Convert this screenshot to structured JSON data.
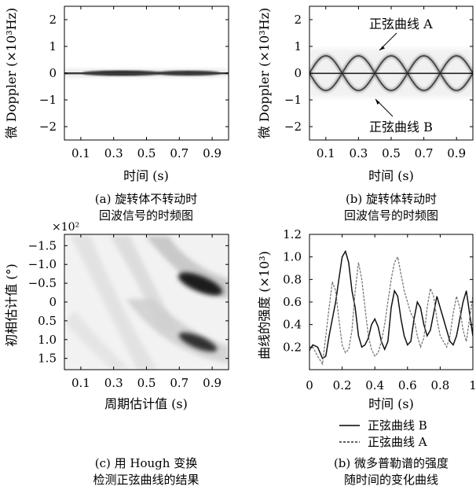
{
  "panels": {
    "a": {
      "ylabel": "微 Doppler (×10³Hz)",
      "xlabel": "时间 (s)",
      "xticks": [
        "0.1",
        "0.3",
        "0.5",
        "0.7",
        "0.9"
      ],
      "yticks": [
        "−2",
        "−1",
        "0",
        "1",
        "2"
      ],
      "caption_line1": "(a) 旋转体不转动时",
      "caption_line2": "回波信号的时频图"
    },
    "b": {
      "ylabel": "微 Doppler (×10³Hz)",
      "xlabel": "时间 (s)",
      "xticks": [
        "0.1",
        "0.3",
        "0.5",
        "0.7",
        "0.9"
      ],
      "yticks": [
        "−2",
        "−1",
        "0",
        "1",
        "2"
      ],
      "annotation_a": "正弦曲线 A",
      "annotation_b": "正弦曲线 B",
      "caption_line1": "(b) 旋转体转动时",
      "caption_line2": "回波信号的时频图"
    },
    "c": {
      "ylabel": "初相估计值 (°)",
      "xlabel": "周期估计值 (s)",
      "multiplier": "×10²",
      "xticks": [
        "0.1",
        "0.3",
        "0.5",
        "0.7",
        "0.9"
      ],
      "yticks": [
        "−1.5",
        "−1.0",
        "−0.5",
        "0",
        "0.5",
        "1.0",
        "1.5"
      ],
      "caption_line1": "(c) 用 Hough 变换",
      "caption_line2": "检测正弦曲线的结果"
    },
    "d": {
      "ylabel": "曲线的强度 (×10³)",
      "xlabel": "时间 (s)",
      "xticks": [
        "0",
        "0.2",
        "0.4",
        "0.6",
        "0.8",
        "1"
      ],
      "yticks": [
        "0.2",
        "0.4",
        "0.6",
        "0.8",
        "1.0",
        "1.2"
      ],
      "legend_b": "正弦曲线 B",
      "legend_a": "正弦曲线 A",
      "caption_line1": "(b) 微多普勒谱的强度",
      "caption_line2": "随时间的变化曲线"
    }
  },
  "colors": {
    "curve_b": "#111111",
    "curve_a": "#6e6e6e",
    "density_dark": "#1a1a1a",
    "density_light": "#c8c8c8"
  },
  "chart_data": [
    {
      "type": "heatmap",
      "panel": "a",
      "xlabel": "时间 (s)",
      "ylabel": "微 Doppler (×10³Hz)",
      "xlim": [
        0,
        1
      ],
      "ylim": [
        2.5,
        -2.5
      ],
      "features": [
        {
          "kind": "band",
          "doppler_khz": 0.0,
          "t_range": [
            0.0,
            1.0
          ],
          "peaks_s": [
            0.3,
            0.75
          ]
        }
      ]
    },
    {
      "type": "heatmap",
      "panel": "b",
      "xlabel": "时间 (s)",
      "ylabel": "微 Doppler (×10³Hz)",
      "xlim": [
        0,
        1
      ],
      "ylim": [
        2.5,
        -2.5
      ],
      "features": [
        {
          "kind": "sinusoid",
          "name": "正弦曲线 A",
          "amplitude_khz": 0.65,
          "period_s": 0.4,
          "phase_peak_s": 0.3,
          "sign": -1
        },
        {
          "kind": "sinusoid",
          "name": "正弦曲线 B",
          "amplitude_khz": 0.65,
          "period_s": 0.4,
          "phase_peak_s": 0.3,
          "sign": 1
        },
        {
          "kind": "band",
          "doppler_khz": 0.0,
          "t_range": [
            0.0,
            1.0
          ]
        }
      ]
    },
    {
      "type": "heatmap",
      "panel": "c",
      "xlabel": "周期估计值 (s)",
      "ylabel": "初相估计值 (°)",
      "y_multiplier": 100,
      "xlim": [
        0,
        1
      ],
      "ylim": [
        -1.8,
        1.8
      ],
      "peaks": [
        {
          "period_s": 0.8,
          "phase_x100": -0.8,
          "intensity": 1.0
        },
        {
          "period_s": 0.8,
          "phase_x100": 1.2,
          "intensity": 0.85
        }
      ]
    },
    {
      "type": "line",
      "panel": "d",
      "xlabel": "时间 (s)",
      "ylabel": "曲线的强度 (×10³)",
      "xlim": [
        0,
        1
      ],
      "ylim": [
        0,
        1.2
      ],
      "series": [
        {
          "name": "正弦曲线 B",
          "style": "solid",
          "x": [
            0.0,
            0.02,
            0.05,
            0.08,
            0.1,
            0.12,
            0.14,
            0.16,
            0.18,
            0.2,
            0.22,
            0.24,
            0.26,
            0.28,
            0.3,
            0.32,
            0.34,
            0.36,
            0.38,
            0.4,
            0.42,
            0.44,
            0.46,
            0.48,
            0.5,
            0.52,
            0.54,
            0.56,
            0.58,
            0.6,
            0.62,
            0.64,
            0.66,
            0.68,
            0.7,
            0.72,
            0.74,
            0.76,
            0.78,
            0.8,
            0.82,
            0.84,
            0.86,
            0.88,
            0.9,
            0.92,
            0.94,
            0.96,
            0.98,
            1.0
          ],
          "values": [
            0.17,
            0.22,
            0.2,
            0.1,
            0.12,
            0.3,
            0.45,
            0.6,
            0.8,
            1.0,
            1.05,
            0.95,
            0.7,
            0.55,
            0.3,
            0.2,
            0.22,
            0.28,
            0.4,
            0.45,
            0.38,
            0.25,
            0.18,
            0.25,
            0.55,
            0.7,
            0.65,
            0.45,
            0.3,
            0.22,
            0.25,
            0.45,
            0.6,
            0.55,
            0.4,
            0.3,
            0.35,
            0.5,
            0.65,
            0.55,
            0.45,
            0.35,
            0.25,
            0.22,
            0.3,
            0.45,
            0.6,
            0.7,
            0.5,
            0.3
          ]
        },
        {
          "name": "正弦曲线 A",
          "style": "dashed",
          "x": [
            0.0,
            0.02,
            0.05,
            0.08,
            0.1,
            0.12,
            0.14,
            0.16,
            0.18,
            0.2,
            0.22,
            0.24,
            0.26,
            0.28,
            0.3,
            0.32,
            0.34,
            0.36,
            0.38,
            0.4,
            0.42,
            0.44,
            0.46,
            0.48,
            0.5,
            0.52,
            0.54,
            0.56,
            0.58,
            0.6,
            0.62,
            0.64,
            0.66,
            0.68,
            0.7,
            0.72,
            0.74,
            0.76,
            0.78,
            0.8,
            0.82,
            0.84,
            0.86,
            0.88,
            0.9,
            0.92,
            0.94,
            0.96,
            0.98,
            1.0
          ],
          "values": [
            0.18,
            0.2,
            0.12,
            0.05,
            0.3,
            0.55,
            0.78,
            0.7,
            0.45,
            0.22,
            0.15,
            0.18,
            0.35,
            0.7,
            0.95,
            0.8,
            0.55,
            0.3,
            0.18,
            0.12,
            0.15,
            0.25,
            0.4,
            0.6,
            0.8,
            0.95,
            1.0,
            0.85,
            0.7,
            0.6,
            0.5,
            0.45,
            0.3,
            0.2,
            0.28,
            0.55,
            0.72,
            0.65,
            0.45,
            0.3,
            0.25,
            0.2,
            0.3,
            0.5,
            0.65,
            0.55,
            0.35,
            0.25,
            0.45,
            0.65
          ]
        }
      ]
    }
  ]
}
